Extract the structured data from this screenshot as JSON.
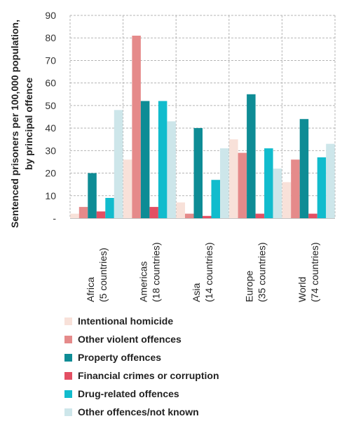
{
  "chart_data": {
    "type": "bar",
    "ylabel_lines": [
      "Sentenced prisoners per 100,000 population,",
      "by principal offence"
    ],
    "ylim": [
      0,
      90
    ],
    "yticks": [
      {
        "value": 0,
        "label": "-"
      },
      {
        "value": 10,
        "label": "10"
      },
      {
        "value": 20,
        "label": "20"
      },
      {
        "value": 30,
        "label": "30"
      },
      {
        "value": 40,
        "label": "40"
      },
      {
        "value": 50,
        "label": "50"
      },
      {
        "value": 60,
        "label": "60"
      },
      {
        "value": 70,
        "label": "70"
      },
      {
        "value": 80,
        "label": "80"
      },
      {
        "value": 90,
        "label": "90"
      }
    ],
    "grid": "dashed",
    "legend_position": "bottom",
    "categories": [
      {
        "line1": "Africa",
        "line2": "(5 countries)"
      },
      {
        "line1": "Americas",
        "line2": "(18 countries)"
      },
      {
        "line1": "Asia",
        "line2": "(14 countries)"
      },
      {
        "line1": "Europe",
        "line2": "(35 countries)"
      },
      {
        "line1": "World",
        "line2": "(74 countries)"
      }
    ],
    "series": [
      {
        "name": "Intentional homicide",
        "color": "#f8e1d9",
        "values": [
          2,
          26,
          7,
          35,
          16
        ]
      },
      {
        "name": "Other violent offences",
        "color": "#e58a8a",
        "values": [
          5,
          81,
          2,
          29,
          26
        ]
      },
      {
        "name": "Property offences",
        "color": "#0e8c95",
        "values": [
          20,
          52,
          40,
          55,
          44
        ]
      },
      {
        "name": "Financial crimes or corruption",
        "color": "#e34f63",
        "values": [
          3,
          5,
          1,
          2,
          2
        ]
      },
      {
        "name": "Drug-related offences",
        "color": "#11bccd",
        "values": [
          9,
          52,
          17,
          31,
          27
        ]
      },
      {
        "name": "Other offences/not known",
        "color": "#cde6ea",
        "values": [
          48,
          43,
          31,
          22,
          33
        ]
      }
    ]
  }
}
